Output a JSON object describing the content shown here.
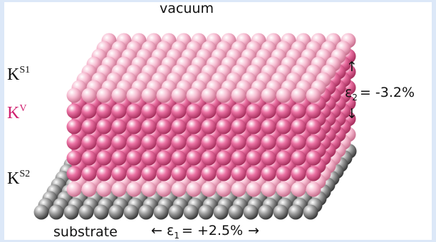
{
  "labels": {
    "vacuum": "vacuum",
    "surface_top": {
      "base": "K",
      "sup": "S1"
    },
    "volume": {
      "base": "K",
      "sup": "V"
    },
    "surface_bottom": {
      "base": "K",
      "sup": "S2"
    },
    "substrate": "substrate",
    "strain_1": {
      "symbol": "ε",
      "sub": "1",
      "text": "= +2.5%"
    },
    "strain_2": {
      "symbol": "ε",
      "sub": "2",
      "text": "= -3.2%"
    }
  }
}
